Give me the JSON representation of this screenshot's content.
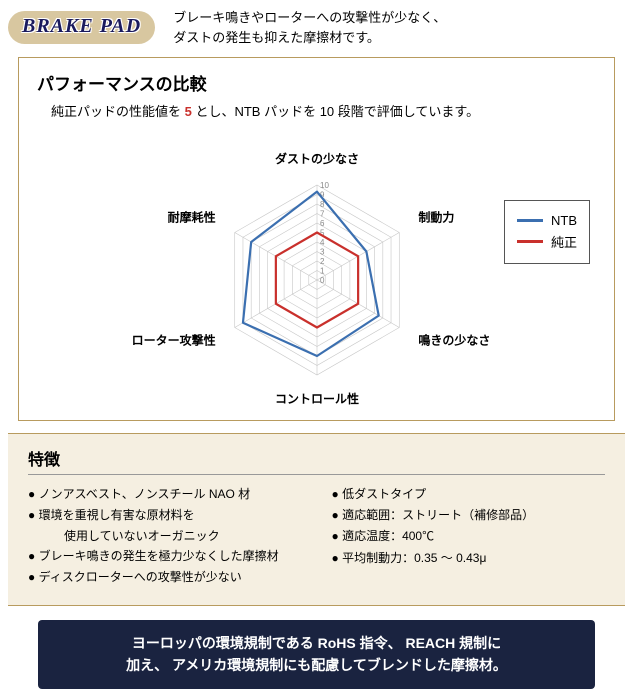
{
  "badge": "BRAKE PAD",
  "tagline_l1": "ブレーキ鳴きやローターへの攻撃性が少なく、",
  "tagline_l2": "ダストの発生も抑えた摩擦材です。",
  "chart": {
    "title": "パフォーマンスの比較",
    "desc_pre": "純正パッドの性能値を ",
    "desc_accent": "5",
    "desc_post": " とし、NTB パッドを 10 段階で評価しています。",
    "axes": [
      "ダストの少なさ",
      "制動力",
      "鳴きの少なさ",
      "コントロール性",
      "ローター攻撃性",
      "耐摩耗性"
    ],
    "max": 10,
    "ticks": [
      0,
      1,
      2,
      3,
      4,
      5,
      6,
      7,
      8,
      9,
      10
    ],
    "grid_color": "#c7c7c7",
    "background": "#ffffff",
    "series": [
      {
        "name": "NTB",
        "color": "#3b6fb0",
        "values": [
          9.3,
          6.0,
          7.5,
          8.0,
          9.0,
          8.0
        ],
        "width": 2.2
      },
      {
        "name": "純正",
        "color": "#c9302c",
        "values": [
          5,
          5,
          5,
          5,
          5,
          5
        ],
        "width": 2.2
      }
    ],
    "label_fontsize": 12,
    "tick_fontsize": 8
  },
  "features": {
    "title": "特徴",
    "left": [
      {
        "text": "● ノンアスベスト、ノンスチール NAO 材"
      },
      {
        "text": "● 環境を重視し有害な原材料を",
        "sub": "使用していないオーガニック"
      },
      {
        "text": "● ブレーキ鳴きの発生を極力少なくした摩擦材"
      },
      {
        "text": "● ディスクローターへの攻撃性が少ない"
      }
    ],
    "right": [
      {
        "text": "● 低ダストタイプ"
      },
      {
        "text": "● 適応範囲：ストリート（補修部品）"
      },
      {
        "text": "● 適応温度：400℃"
      },
      {
        "text": "● 平均制動力：0.35 〜 0.43μ"
      }
    ]
  },
  "banner_l1": "ヨーロッパの環境規制である RoHS 指令、 REACH 規制に",
  "banner_l2": "加え、 アメリカ環境規制にも配慮してブレンドした摩擦材。"
}
